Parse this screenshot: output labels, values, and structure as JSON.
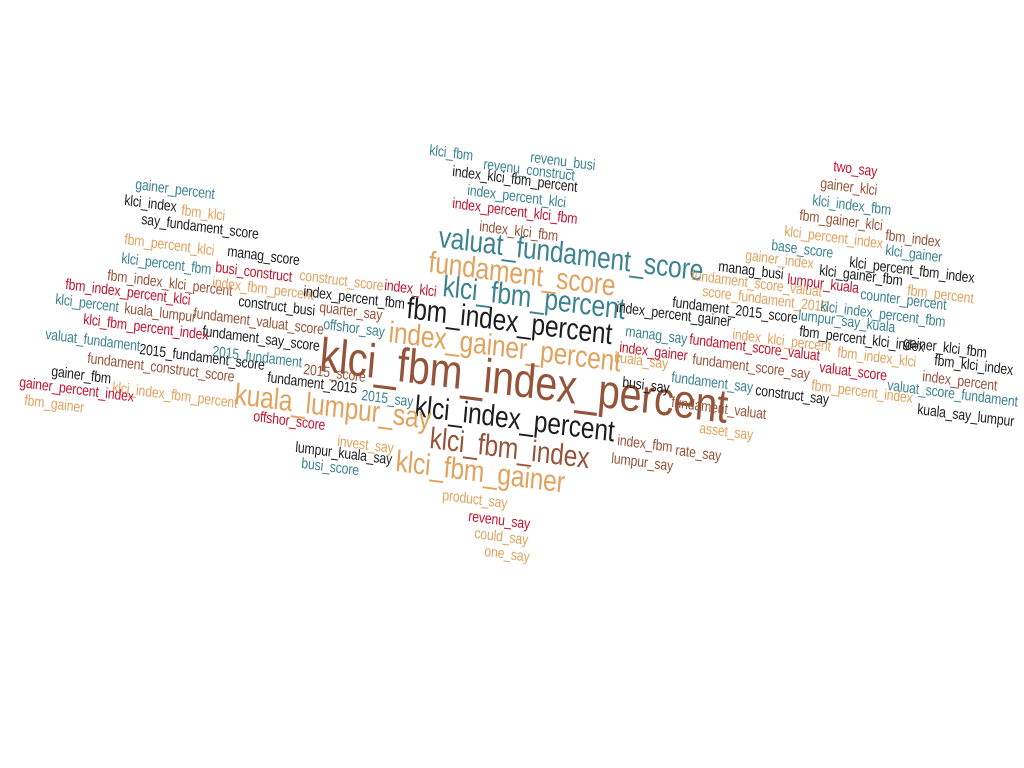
{
  "palette": {
    "brown": "#95543a",
    "teal": "#3b8391",
    "sand": "#e1a25e",
    "red": "#c2132e",
    "black": "#1d1d1d"
  },
  "words": [
    {
      "text": "klci_fbm",
      "color": "teal"
    },
    {
      "text": "revenu_busi",
      "color": "teal"
    },
    {
      "text": "revenu_construct",
      "color": "teal"
    },
    {
      "text": "index_klci_fbm_percent",
      "color": "black"
    },
    {
      "text": "index_percent_klci",
      "color": "teal"
    },
    {
      "text": "index_percent_klci_fbm",
      "color": "red"
    },
    {
      "text": "index_klci_fbm",
      "color": "brown"
    },
    {
      "text": "valuat_fundament_score",
      "color": "teal"
    },
    {
      "text": "fundament_score",
      "color": "sand"
    },
    {
      "text": "klci_fbm_percent",
      "color": "teal"
    },
    {
      "text": "fbm_index_percent",
      "color": "black"
    },
    {
      "text": "index_gainer_percent",
      "color": "sand"
    },
    {
      "text": "klci_fbm_index_percent",
      "color": "brown"
    },
    {
      "text": "klci_index_percent",
      "color": "black"
    },
    {
      "text": "kuala_lumpur_say",
      "color": "sand"
    },
    {
      "text": "klci_fbm_index",
      "color": "brown"
    },
    {
      "text": "klci_fbm_gainer",
      "color": "sand"
    },
    {
      "text": "product_say",
      "color": "sand"
    },
    {
      "text": "revenu_say",
      "color": "red"
    },
    {
      "text": "could_say",
      "color": "sand"
    },
    {
      "text": "one_say",
      "color": "sand"
    },
    {
      "text": "gainer_percent",
      "color": "teal"
    },
    {
      "text": "klci_index",
      "color": "black"
    },
    {
      "text": "fbm_klci",
      "color": "sand"
    },
    {
      "text": "say_fundament_score",
      "color": "black"
    },
    {
      "text": "fbm_percent_klci",
      "color": "sand"
    },
    {
      "text": "manag_score",
      "color": "black"
    },
    {
      "text": "klci_percent_fbm",
      "color": "teal"
    },
    {
      "text": "busi_construct",
      "color": "red"
    },
    {
      "text": "fbm_index_klci_percent",
      "color": "brown"
    },
    {
      "text": "index_fbm_percent",
      "color": "sand"
    },
    {
      "text": "construct_score",
      "color": "sand"
    },
    {
      "text": "index_klci",
      "color": "red"
    },
    {
      "text": "index_percent_fbm",
      "color": "black"
    },
    {
      "text": "fbm_index_percent_klci",
      "color": "red"
    },
    {
      "text": "construct_busi",
      "color": "black"
    },
    {
      "text": "quarter_say",
      "color": "brown"
    },
    {
      "text": "klci_percent",
      "color": "teal"
    },
    {
      "text": "kuala_lumpur",
      "color": "brown"
    },
    {
      "text": "fundament_valuat_score",
      "color": "brown"
    },
    {
      "text": "offshor_say",
      "color": "teal"
    },
    {
      "text": "klci_fbm_percent_index",
      "color": "red"
    },
    {
      "text": "fundament_say_score",
      "color": "black"
    },
    {
      "text": "valuat_fundament",
      "color": "teal"
    },
    {
      "text": "2015_fundament_score",
      "color": "black"
    },
    {
      "text": "2015_fundament",
      "color": "teal"
    },
    {
      "text": "fundament_construct_score",
      "color": "brown"
    },
    {
      "text": "fundament_2015",
      "color": "black"
    },
    {
      "text": "2015_score",
      "color": "brown"
    },
    {
      "text": "gainer_fbm",
      "color": "black"
    },
    {
      "text": "klci_index_fbm_percent",
      "color": "sand"
    },
    {
      "text": "2015_say",
      "color": "teal"
    },
    {
      "text": "gainer_percent_index",
      "color": "red"
    },
    {
      "text": "fbm_gainer",
      "color": "sand"
    },
    {
      "text": "offshor_score",
      "color": "red"
    },
    {
      "text": "invest_say",
      "color": "sand"
    },
    {
      "text": "lumpur_kuala_say",
      "color": "black"
    },
    {
      "text": "busi_score",
      "color": "teal"
    },
    {
      "text": "index_percent_gainer",
      "color": "black"
    },
    {
      "text": "manag_say",
      "color": "teal"
    },
    {
      "text": "kuala_say",
      "color": "sand"
    },
    {
      "text": "index_gainer",
      "color": "red"
    },
    {
      "text": "busi_say",
      "color": "black"
    },
    {
      "text": "fundament_say",
      "color": "teal"
    },
    {
      "text": "fundament_valuat",
      "color": "brown"
    },
    {
      "text": "asset_say",
      "color": "sand"
    },
    {
      "text": "index_fbm",
      "color": "brown"
    },
    {
      "text": "rate_say",
      "color": "brown"
    },
    {
      "text": "lumpur_say",
      "color": "brown"
    },
    {
      "text": "construct_say",
      "color": "black"
    },
    {
      "text": "two_say",
      "color": "red"
    },
    {
      "text": "gainer_klci",
      "color": "brown"
    },
    {
      "text": "klci_index_fbm",
      "color": "teal"
    },
    {
      "text": "fbm_gainer_klci",
      "color": "brown"
    },
    {
      "text": "fbm_index",
      "color": "brown"
    },
    {
      "text": "klci_percent_index",
      "color": "sand"
    },
    {
      "text": "klci_gainer",
      "color": "teal"
    },
    {
      "text": "base_score",
      "color": "teal"
    },
    {
      "text": "gainer_index",
      "color": "sand"
    },
    {
      "text": "klci_percent_fbm_index",
      "color": "black"
    },
    {
      "text": "manag_busi",
      "color": "black"
    },
    {
      "text": "lumpur_kuala",
      "color": "red"
    },
    {
      "text": "klci_gainer_fbm",
      "color": "black"
    },
    {
      "text": "fundament_score_valuat",
      "color": "sand"
    },
    {
      "text": "fbm_percent",
      "color": "sand"
    },
    {
      "text": "score_fundament_2015",
      "color": "sand"
    },
    {
      "text": "counter_percent",
      "color": "teal"
    },
    {
      "text": "fundament_2015_score",
      "color": "black"
    },
    {
      "text": "lumpur_say_kuala",
      "color": "teal"
    },
    {
      "text": "klci_index_percent_fbm",
      "color": "teal"
    },
    {
      "text": "fbm_percent_klci_index",
      "color": "black"
    },
    {
      "text": "index_klci_percent",
      "color": "sand"
    },
    {
      "text": "gainer_klci_fbm",
      "color": "black"
    },
    {
      "text": "fundament_score_valuat",
      "color": "red"
    },
    {
      "text": "fbm_index_klci",
      "color": "sand"
    },
    {
      "text": "fbm_klci_index",
      "color": "black"
    },
    {
      "text": "fundament_score_say",
      "color": "brown"
    },
    {
      "text": "valuat_score",
      "color": "red"
    },
    {
      "text": "index_percent",
      "color": "brown"
    },
    {
      "text": "fbm_percent_index",
      "color": "sand"
    },
    {
      "text": "valuat_score_fundament",
      "color": "teal"
    },
    {
      "text": "kuala_say_lumpur",
      "color": "black"
    }
  ]
}
